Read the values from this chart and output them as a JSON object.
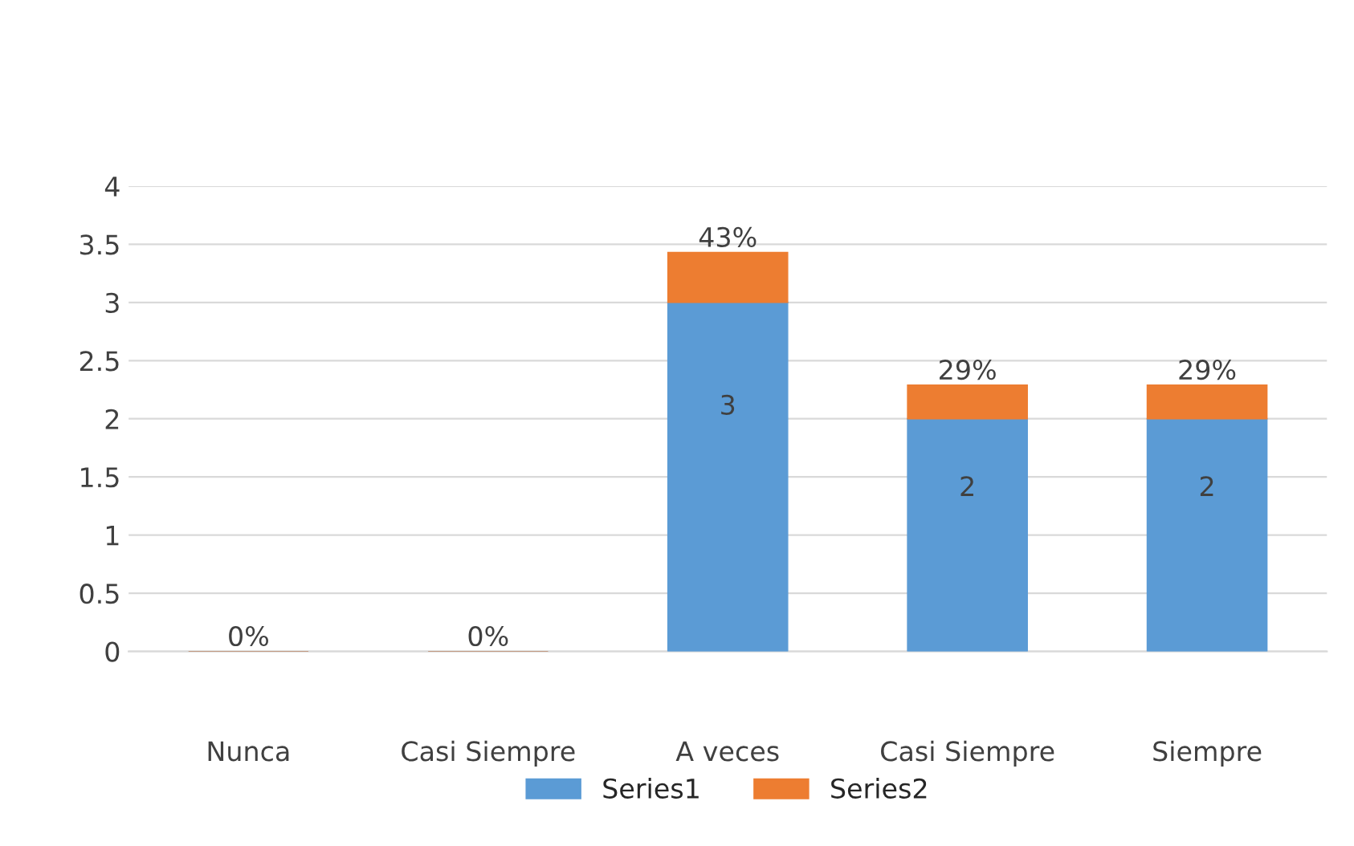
{
  "chart_data": {
    "type": "bar",
    "stacked": true,
    "categories": [
      "Nunca",
      "Casi Siempre",
      "A veces",
      "Casi Siempre",
      "Siempre"
    ],
    "series": [
      {
        "name": "Series1",
        "color": "#5b9bd5",
        "values": [
          0,
          0,
          3,
          2,
          2
        ],
        "value_labels": [
          null,
          null,
          "3",
          "2",
          "2"
        ]
      },
      {
        "name": "Series2",
        "color": "#ed7d31",
        "values": [
          0,
          0,
          0.43,
          0.29,
          0.29
        ],
        "value_labels": [
          "0%",
          "0%",
          "43%",
          "29%",
          "29%"
        ]
      }
    ],
    "ylim": [
      0,
      4
    ],
    "yticks": [
      0,
      0.5,
      1,
      1.5,
      2,
      2.5,
      3,
      3.5,
      4
    ],
    "grid": "y",
    "legend": "bottom"
  }
}
